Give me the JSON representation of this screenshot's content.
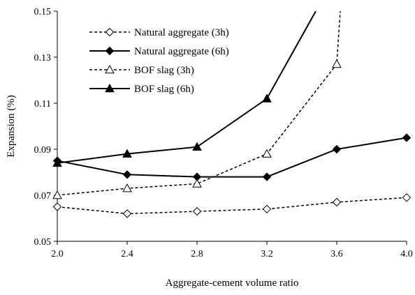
{
  "chart_data": {
    "type": "line",
    "title": "",
    "xlabel": "Aggregate-cement volume ratio",
    "ylabel": "Expansion (%)",
    "xlim": [
      2.0,
      4.0
    ],
    "ylim": [
      0.05,
      0.15
    ],
    "xticks": [
      "2.0",
      "2.4",
      "2.8",
      "3.2",
      "3.6",
      "4.0"
    ],
    "yticks": [
      "0.05",
      "0.07",
      "0.09",
      "0.11",
      "0.13",
      "0.15"
    ],
    "grid": false,
    "legend_position": "top-left",
    "series": [
      {
        "name": "Natural aggregate (3h)",
        "line_style": "dashed",
        "marker": "open-diamond",
        "x": [
          2.0,
          2.4,
          2.8,
          3.2,
          3.6,
          4.0
        ],
        "y": [
          0.065,
          0.062,
          0.063,
          0.064,
          0.067,
          0.069
        ]
      },
      {
        "name": "Natural aggregate (6h)",
        "line_style": "solid",
        "marker": "filled-diamond",
        "x": [
          2.0,
          2.4,
          2.8,
          3.2,
          3.6,
          4.0
        ],
        "y": [
          0.085,
          0.079,
          0.078,
          0.078,
          0.09,
          0.095
        ]
      },
      {
        "name": "BOF slag (3h)",
        "line_style": "dashed",
        "marker": "open-triangle",
        "x": [
          2.0,
          2.4,
          2.8,
          3.2,
          3.6,
          3.62
        ],
        "y": [
          0.07,
          0.073,
          0.075,
          0.088,
          0.127,
          0.15
        ]
      },
      {
        "name": "BOF slag (6h)",
        "line_style": "solid",
        "marker": "filled-triangle",
        "x": [
          2.0,
          2.4,
          2.8,
          3.2,
          3.48
        ],
        "y": [
          0.084,
          0.088,
          0.091,
          0.112,
          0.15
        ]
      }
    ],
    "marker_count": [
      6,
      6,
      5,
      4
    ]
  }
}
